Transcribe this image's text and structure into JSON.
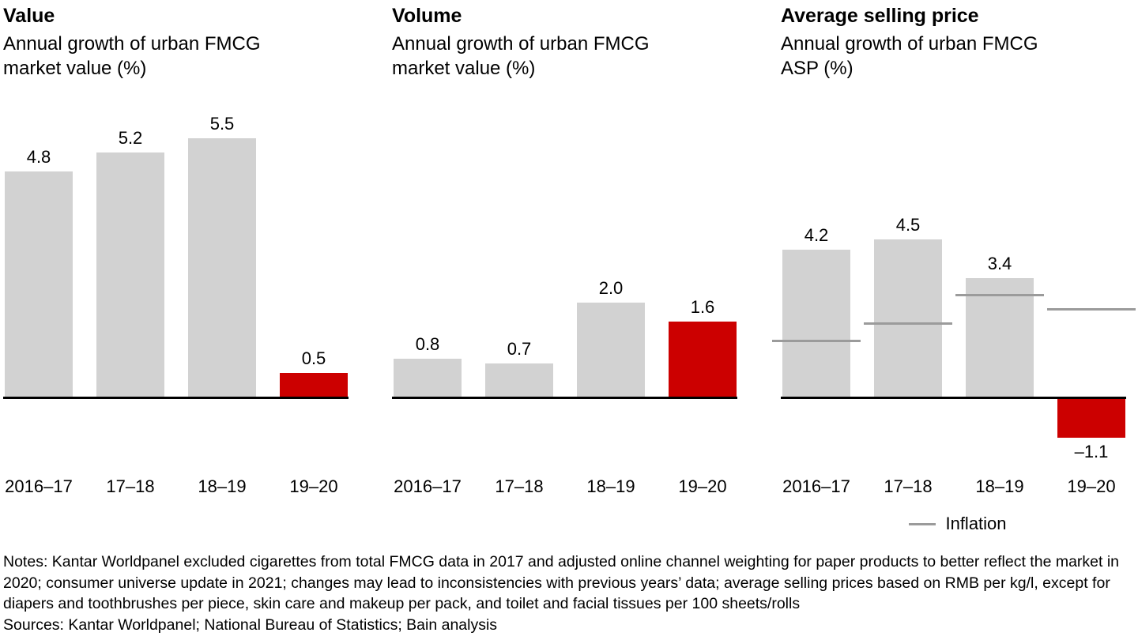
{
  "colors": {
    "bar_gray": "#d2d2d2",
    "bar_red": "#cc0000",
    "baseline": "#000000",
    "inflation_line": "#9b9b9b",
    "text": "#000000",
    "background": "#ffffff"
  },
  "legend": {
    "inflation_label": "Inflation"
  },
  "notes": {
    "notes_text": "Notes: Kantar Worldpanel excluded cigarettes from total FMCG data in 2017 and adjusted online channel weighting for paper products to better reflect the market in 2020; consumer universe update in 2021; changes may lead to inconsistencies with previous years’ data; average selling prices based on RMB per kg/l, except for diapers and toothbrushes per piece, skin care and makeup per pack, and toilet and facial tissues per 100 sheets/rolls",
    "sources_text": "Sources: Kantar Worldpanel; National Bureau of Statistics; Bain analysis"
  },
  "chart_data": [
    {
      "type": "bar",
      "title": "Value",
      "subtitle": "Annual growth of urban FMCG market value (%)",
      "categories": [
        "2016–17",
        "17–18",
        "18–19",
        "19–20"
      ],
      "values": [
        4.8,
        5.2,
        5.5,
        0.5
      ],
      "labels": [
        "4.8",
        "5.2",
        "5.5",
        "0.5"
      ],
      "bar_colors": [
        "#d2d2d2",
        "#d2d2d2",
        "#d2d2d2",
        "#cc0000"
      ],
      "ylim": [
        0,
        6.4
      ],
      "grid": false,
      "legend_position": "none"
    },
    {
      "type": "bar",
      "title": "Volume",
      "subtitle": "Annual growth of urban FMCG market value (%)",
      "categories": [
        "2016–17",
        "17–18",
        "18–19",
        "19–20"
      ],
      "values": [
        0.8,
        0.7,
        2.0,
        1.6
      ],
      "labels": [
        "0.8",
        "0.7",
        "2.0",
        "1.6"
      ],
      "bar_colors": [
        "#d2d2d2",
        "#d2d2d2",
        "#d2d2d2",
        "#cc0000"
      ],
      "ylim": [
        0,
        6.4
      ],
      "grid": false,
      "legend_position": "none"
    },
    {
      "type": "bar",
      "title": "Average selling price",
      "subtitle": "Annual growth of urban FMCG ASP (%)",
      "categories": [
        "2016–17",
        "17–18",
        "18–19",
        "19–20"
      ],
      "values": [
        4.2,
        4.5,
        3.4,
        -1.1
      ],
      "labels": [
        "4.2",
        "4.5",
        "3.4",
        "–1.1"
      ],
      "bar_colors": [
        "#d2d2d2",
        "#d2d2d2",
        "#d2d2d2",
        "#cc0000"
      ],
      "ylim": [
        -2,
        8.6
      ],
      "inflation": [
        1.6,
        2.1,
        2.9,
        2.5
      ],
      "inflation_series_name": "Inflation",
      "grid": false,
      "legend_position": "below-right"
    }
  ]
}
